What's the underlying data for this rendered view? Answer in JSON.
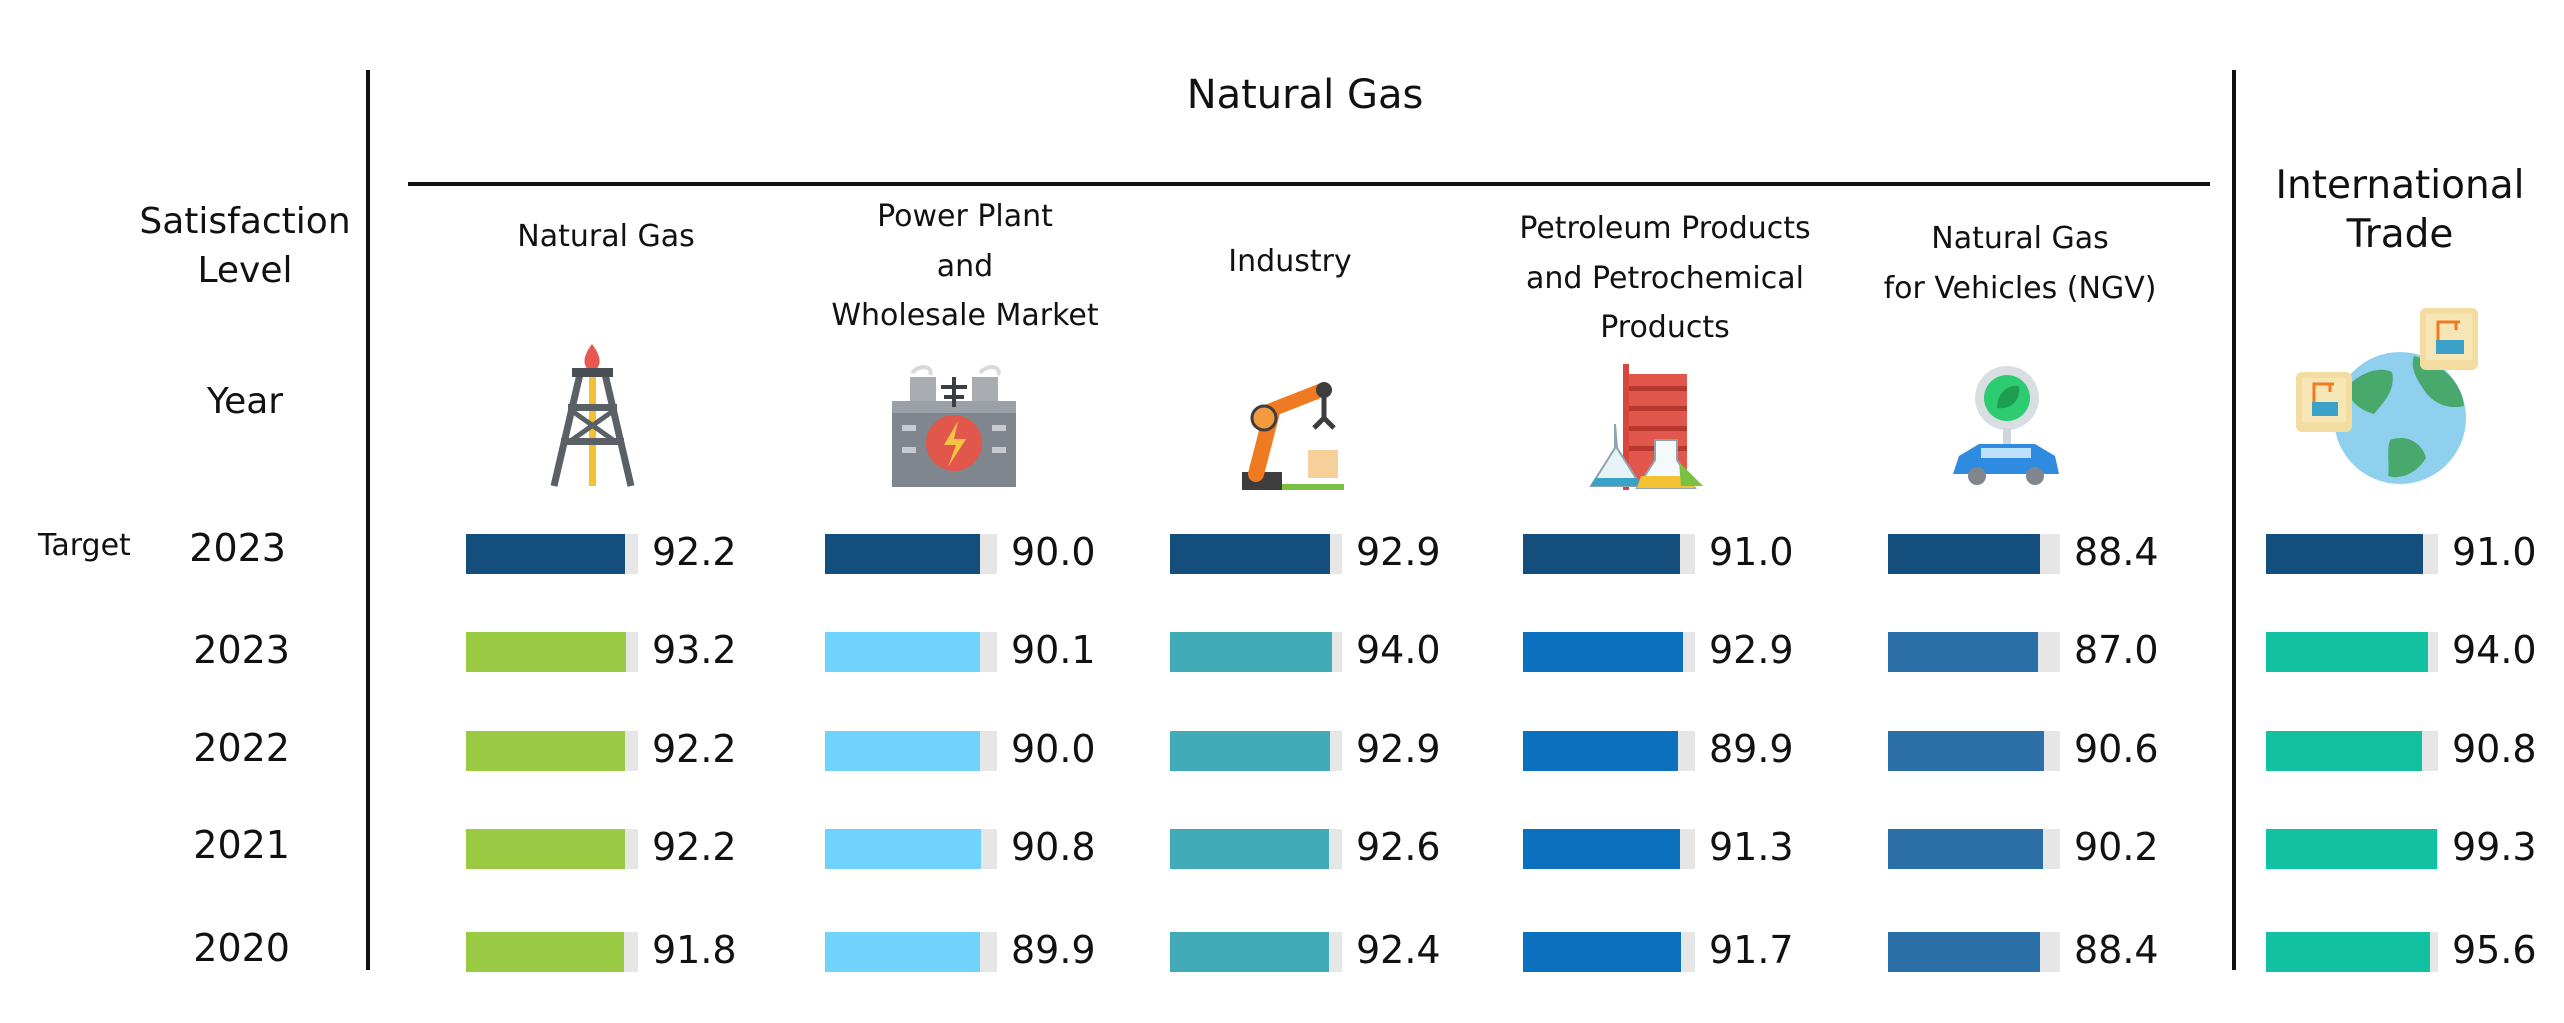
{
  "header": {
    "group_title": "Natural Gas",
    "row_header": [
      "Satisfaction",
      "Level"
    ],
    "year_header": "Year",
    "international_title": [
      "International",
      "Trade"
    ],
    "target_label": "Target"
  },
  "icons": [
    "gas-rig-icon",
    "power-plant-icon",
    "robot-arm-icon",
    "refinery-flask-icon",
    "ngv-car-icon",
    "globe-trade-icon"
  ],
  "chart_data": {
    "type": "bar",
    "orientation": "horizontal",
    "scale_max": 100,
    "rows": [
      "Target 2023",
      "2023",
      "2022",
      "2021",
      "2020"
    ],
    "years": [
      "2023",
      "2023",
      "2022",
      "2021",
      "2020"
    ],
    "categories": [
      {
        "name": "Natural Gas",
        "label_lines": [
          "Natural Gas"
        ],
        "values": [
          92.2,
          93.2,
          92.2,
          92.2,
          91.8
        ],
        "color": "#9ac943",
        "target_color": "#134e7c"
      },
      {
        "name": "Power Plant and Wholesale Market",
        "label_lines": [
          "Power Plant",
          "and",
          "Wholesale Market"
        ],
        "values": [
          90.0,
          90.1,
          90.0,
          90.8,
          89.9
        ],
        "color": "#70d3fb",
        "target_color": "#134e7c"
      },
      {
        "name": "Industry",
        "label_lines": [
          "Industry"
        ],
        "values": [
          92.9,
          94.0,
          92.9,
          92.6,
          92.4
        ],
        "color": "#42abb8",
        "target_color": "#134e7c"
      },
      {
        "name": "Petroleum Products and Petrochemical Products",
        "label_lines": [
          "Petroleum Products",
          "and Petrochemical",
          "Products"
        ],
        "values": [
          91.0,
          92.9,
          89.9,
          91.3,
          91.7
        ],
        "color": "#0b70bd",
        "target_color": "#134e7c"
      },
      {
        "name": "Natural Gas for Vehicles (NGV)",
        "label_lines": [
          "Natural Gas",
          "for Vehicles (NGV)"
        ],
        "values": [
          88.4,
          87.0,
          90.6,
          90.2,
          88.4
        ],
        "color": "#2b6fa9",
        "target_color": "#134e7c"
      },
      {
        "name": "International Trade",
        "label_lines": [],
        "values": [
          91.0,
          94.0,
          90.8,
          99.3,
          95.6
        ],
        "color": "#12c1a0",
        "target_color": "#134e7c"
      }
    ],
    "value_labels": [
      [
        "92.2",
        "93.2",
        "92.2",
        "92.2",
        "91.8"
      ],
      [
        "90.0",
        "90.1",
        "90.0",
        "90.8",
        "89.9"
      ],
      [
        "92.9",
        "94.0",
        "92.9",
        "92.6",
        "92.4"
      ],
      [
        "91.0",
        "92.9",
        "89.9",
        "91.3",
        "91.7"
      ],
      [
        "88.4",
        "87.0",
        "90.6",
        "90.2",
        "88.4"
      ],
      [
        "91.0",
        "94.0",
        "90.8",
        "99.3",
        "95.6"
      ]
    ]
  }
}
